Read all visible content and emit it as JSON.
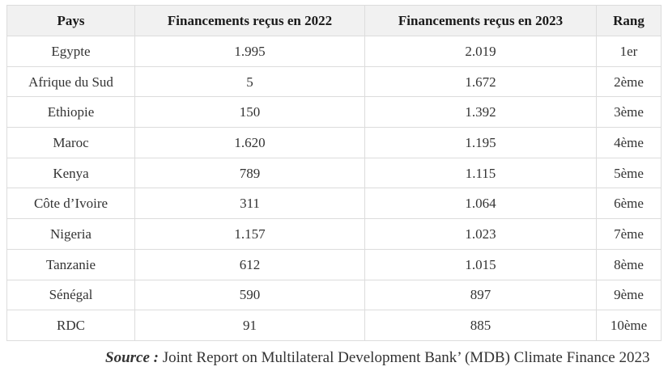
{
  "table": {
    "headers": [
      "Pays",
      "Financements reçus en 2022",
      "Financements reçus en 2023",
      "Rang"
    ],
    "rows": [
      [
        "Egypte",
        "1.995",
        "2.019",
        "1er"
      ],
      [
        "Afrique du Sud",
        "5",
        "1.672",
        "2ème"
      ],
      [
        "Ethiopie",
        "150",
        "1.392",
        "3ème"
      ],
      [
        "Maroc",
        "1.620",
        "1.195",
        "4ème"
      ],
      [
        "Kenya",
        "789",
        "1.115",
        "5ème"
      ],
      [
        "Côte d’Ivoire",
        "311",
        "1.064",
        "6ème"
      ],
      [
        "Nigeria",
        "1.157",
        "1.023",
        "7ème"
      ],
      [
        "Tanzanie",
        "612",
        "1.015",
        "8ème"
      ],
      [
        "Sénégal",
        "590",
        "897",
        "9ème"
      ],
      [
        "RDC",
        "91",
        "885",
        "10ème"
      ]
    ]
  },
  "source": {
    "label": "Source :",
    "text": " Joint Report on Multilateral Development Bank’ (MDB) Climate Finance 2023"
  }
}
